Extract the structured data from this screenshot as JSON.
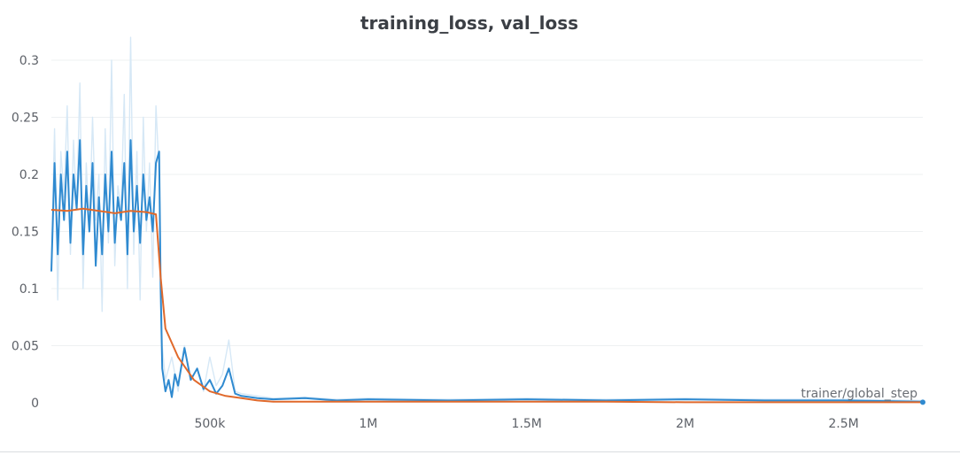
{
  "chart_data": {
    "type": "line",
    "title": "training_loss, val_loss",
    "xlabel": "trainer/global_step",
    "ylabel": "",
    "xlim": [
      0,
      2750000
    ],
    "ylim": [
      0,
      0.3
    ],
    "y_ticks": [
      0,
      0.05,
      0.1,
      0.15,
      0.2,
      0.25,
      0.3
    ],
    "y_tick_labels": [
      "0",
      "0.05",
      "0.1",
      "0.15",
      "0.2",
      "0.25",
      "0.3"
    ],
    "x_ticks": [
      500000,
      1000000,
      1500000,
      2000000,
      2500000
    ],
    "x_tick_labels": [
      "500k",
      "1M",
      "1.5M",
      "2M",
      "2.5M"
    ],
    "grid": true,
    "series": [
      {
        "key": "training_loss_raw",
        "color": "#d6e8f6",
        "x": [
          0,
          10000,
          20000,
          30000,
          40000,
          50000,
          60000,
          70000,
          80000,
          90000,
          100000,
          110000,
          120000,
          130000,
          140000,
          150000,
          160000,
          170000,
          180000,
          190000,
          200000,
          210000,
          220000,
          230000,
          240000,
          250000,
          260000,
          270000,
          280000,
          290000,
          300000,
          310000,
          320000,
          330000,
          340000,
          350000,
          360000,
          380000,
          400000,
          420000,
          440000,
          460000,
          480000,
          500000,
          520000,
          540000,
          560000,
          580000,
          600000,
          650000,
          700000,
          800000,
          900000,
          1000000,
          1250000,
          1500000,
          1750000,
          2000000,
          2250000,
          2500000,
          2750000
        ],
        "values": [
          0.12,
          0.24,
          0.09,
          0.22,
          0.18,
          0.26,
          0.13,
          0.23,
          0.17,
          0.28,
          0.1,
          0.21,
          0.15,
          0.25,
          0.16,
          0.2,
          0.08,
          0.24,
          0.14,
          0.3,
          0.12,
          0.19,
          0.17,
          0.27,
          0.1,
          0.32,
          0.13,
          0.22,
          0.09,
          0.25,
          0.15,
          0.21,
          0.11,
          0.26,
          0.2,
          0.05,
          0.02,
          0.04,
          0.01,
          0.05,
          0.02,
          0.03,
          0.01,
          0.04,
          0.015,
          0.025,
          0.055,
          0.01,
          0.008,
          0.006,
          0.004,
          0.005,
          0.003,
          0.004,
          0.003,
          0.004,
          0.003,
          0.004,
          0.003,
          0.003,
          0.002
        ]
      },
      {
        "key": "training_loss",
        "color": "#2f8ad0",
        "x": [
          0,
          10000,
          20000,
          30000,
          40000,
          50000,
          60000,
          70000,
          80000,
          90000,
          100000,
          110000,
          120000,
          130000,
          140000,
          150000,
          160000,
          170000,
          180000,
          190000,
          200000,
          210000,
          220000,
          230000,
          240000,
          250000,
          260000,
          270000,
          280000,
          290000,
          300000,
          310000,
          320000,
          330000,
          340000,
          345000,
          350000,
          360000,
          370000,
          380000,
          390000,
          400000,
          420000,
          440000,
          460000,
          480000,
          500000,
          520000,
          540000,
          560000,
          580000,
          600000,
          650000,
          700000,
          800000,
          900000,
          1000000,
          1250000,
          1500000,
          1750000,
          2000000,
          2250000,
          2500000,
          2750000
        ],
        "values": [
          0.115,
          0.21,
          0.13,
          0.2,
          0.16,
          0.22,
          0.14,
          0.2,
          0.17,
          0.23,
          0.13,
          0.19,
          0.15,
          0.21,
          0.12,
          0.18,
          0.13,
          0.2,
          0.15,
          0.22,
          0.14,
          0.18,
          0.16,
          0.21,
          0.13,
          0.23,
          0.15,
          0.19,
          0.14,
          0.2,
          0.16,
          0.18,
          0.15,
          0.21,
          0.22,
          0.1,
          0.03,
          0.01,
          0.02,
          0.005,
          0.025,
          0.015,
          0.048,
          0.02,
          0.03,
          0.012,
          0.02,
          0.008,
          0.015,
          0.03,
          0.008,
          0.006,
          0.004,
          0.003,
          0.004,
          0.002,
          0.003,
          0.002,
          0.003,
          0.002,
          0.003,
          0.002,
          0.002,
          0.001
        ]
      },
      {
        "key": "val_loss",
        "color": "#e0692b",
        "x": [
          0,
          50000,
          100000,
          150000,
          200000,
          250000,
          300000,
          330000,
          345000,
          360000,
          400000,
          450000,
          500000,
          550000,
          600000,
          650000,
          700000,
          800000,
          1000000,
          1250000,
          1500000,
          1750000,
          2000000,
          2250000,
          2500000,
          2750000
        ],
        "values": [
          0.169,
          0.168,
          0.17,
          0.168,
          0.166,
          0.168,
          0.167,
          0.165,
          0.11,
          0.065,
          0.04,
          0.02,
          0.01,
          0.006,
          0.004,
          0.002,
          0.001,
          0.001,
          0.001,
          0.001,
          0.001,
          0.001,
          0.0005,
          0.0005,
          0.0005,
          0.0005
        ]
      }
    ],
    "end_marker": {
      "x": 2750000,
      "value": 0.0005,
      "color": "#2f8ad0"
    }
  }
}
